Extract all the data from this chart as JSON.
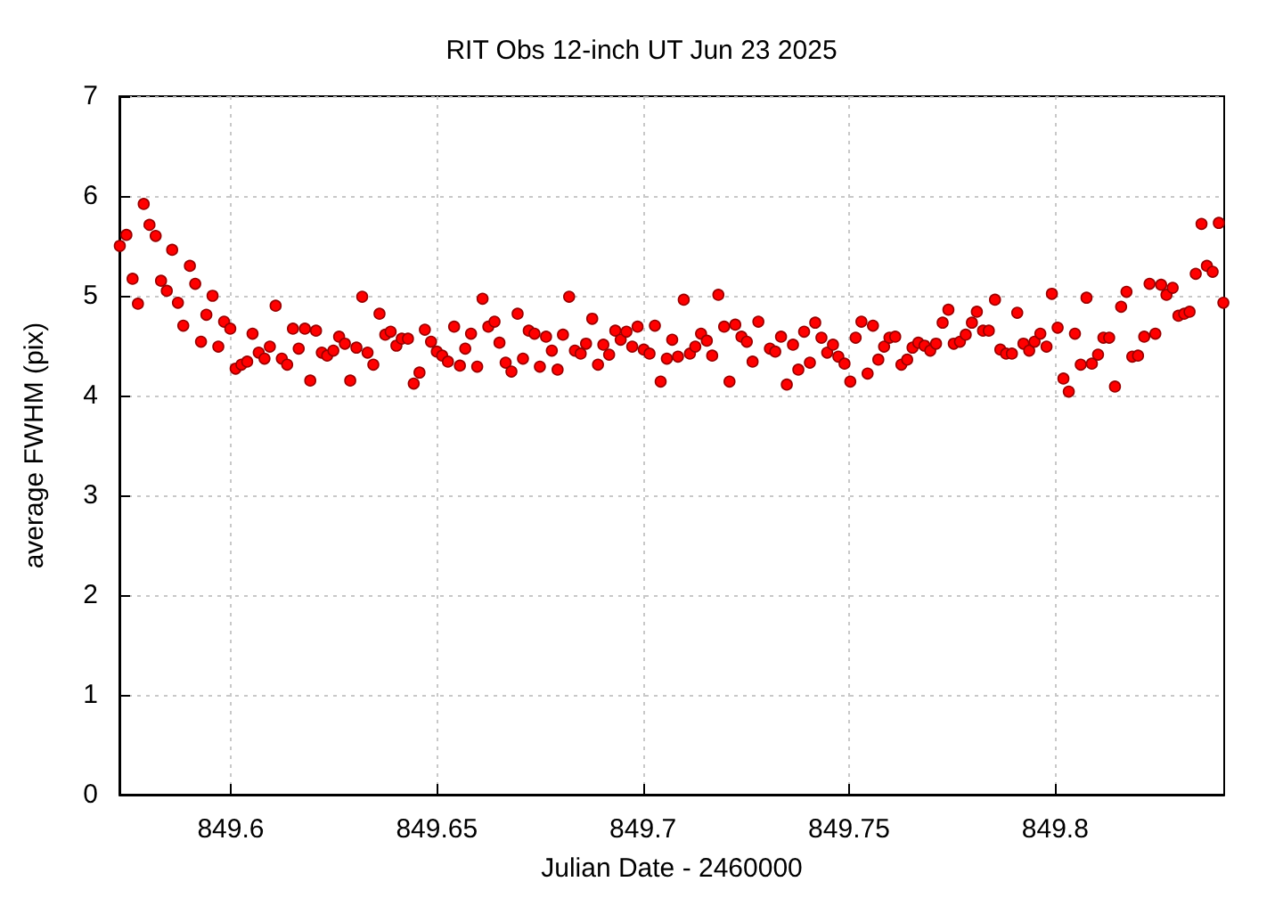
{
  "chart_data": {
    "type": "scatter",
    "title": "RIT Obs 12-inch UT Jun 23 2025",
    "xlabel": "Julian Date - 2460000",
    "ylabel": "average FWHM (pix)",
    "x": [
      849.5731,
      849.5747,
      849.5762,
      849.5775,
      849.5789,
      849.5803,
      849.5818,
      849.5831,
      849.5845,
      849.5858,
      849.5872,
      849.5885,
      849.5901,
      849.5914,
      849.5928,
      849.5941,
      849.5956,
      849.597,
      849.5984,
      849.5999,
      849.6012,
      849.6026,
      849.604,
      849.6053,
      849.6068,
      849.6082,
      849.6095,
      849.6109,
      849.6124,
      849.6137,
      849.6151,
      849.6165,
      849.618,
      849.6193,
      849.6207,
      849.6221,
      849.6234,
      849.6249,
      849.6263,
      849.6277,
      849.629,
      849.6305,
      849.6319,
      849.6332,
      849.6346,
      849.6361,
      849.6375,
      849.6388,
      849.6402,
      849.6415,
      849.643,
      849.6444,
      849.6458,
      849.6471,
      849.6486,
      849.65,
      849.6513,
      849.6527,
      849.6542,
      849.6556,
      849.6569,
      849.6583,
      849.6598,
      849.6611,
      849.6625,
      849.664,
      849.6652,
      849.6667,
      849.6681,
      849.6696,
      849.6709,
      849.6723,
      849.6737,
      849.675,
      849.6765,
      849.6779,
      849.6793,
      849.6806,
      849.6821,
      849.6835,
      849.6849,
      849.6862,
      849.6877,
      849.6891,
      849.6904,
      849.6918,
      849.6933,
      849.6946,
      849.696,
      849.6974,
      849.6987,
      849.7002,
      849.7016,
      849.7029,
      849.7043,
      849.7058,
      849.7071,
      849.7085,
      849.7099,
      849.7114,
      849.7127,
      849.7141,
      849.7155,
      849.7168,
      849.7183,
      849.7197,
      849.721,
      849.7224,
      849.7239,
      849.7252,
      849.7266,
      849.728,
      849.7308,
      849.7321,
      849.7335,
      849.7349,
      849.7364,
      849.7377,
      849.7391,
      849.7405,
      849.7418,
      849.7433,
      849.7447,
      849.7461,
      849.7474,
      849.7489,
      849.7503,
      849.7516,
      849.753,
      849.7545,
      849.7558,
      849.7571,
      849.7585,
      849.7598,
      849.7612,
      849.7627,
      849.7641,
      849.7654,
      849.7668,
      849.7683,
      849.7697,
      849.7711,
      849.7727,
      849.7741,
      849.7754,
      849.7769,
      849.7783,
      849.7798,
      849.781,
      849.7825,
      849.7839,
      849.7854,
      849.7867,
      849.7881,
      849.7895,
      849.7908,
      849.7923,
      849.7937,
      849.795,
      849.7964,
      849.7979,
      849.7992,
      849.8006,
      849.802,
      849.8033,
      849.8048,
      849.8062,
      849.8076,
      849.8089,
      849.8104,
      849.8117,
      849.8131,
      849.8145,
      849.816,
      849.8173,
      849.8187,
      849.8201,
      849.8216,
      849.8229,
      849.8243,
      849.8257,
      849.827,
      849.8285,
      849.8299,
      849.8313,
      849.8326,
      849.8341,
      849.8355,
      849.8368,
      849.8382,
      849.8397,
      849.8408
    ],
    "series": [
      {
        "color": "#ff0000",
        "values": [
          5.5,
          5.61,
          5.17,
          4.92,
          5.92,
          5.71,
          5.6,
          5.15,
          5.05,
          5.46,
          4.93,
          4.7,
          5.3,
          5.12,
          4.54,
          4.81,
          5.0,
          4.49,
          4.74,
          4.67,
          4.27,
          4.31,
          4.34,
          4.62,
          4.43,
          4.37,
          4.49,
          4.9,
          4.37,
          4.31,
          4.67,
          4.47,
          4.67,
          4.15,
          4.65,
          4.43,
          4.4,
          4.45,
          4.59,
          4.52,
          4.15,
          4.48,
          4.99,
          4.43,
          4.31,
          4.82,
          4.61,
          4.64,
          4.5,
          4.57,
          4.57,
          4.12,
          4.23,
          4.66,
          4.54,
          4.44,
          4.4,
          4.34,
          4.69,
          4.3,
          4.47,
          4.62,
          4.29,
          4.97,
          4.69,
          4.74,
          4.53,
          4.33,
          4.24,
          4.82,
          4.37,
          4.65,
          4.62,
          4.29,
          4.59,
          4.45,
          4.26,
          4.61,
          4.99,
          4.45,
          4.42,
          4.52,
          4.77,
          4.31,
          4.51,
          4.41,
          4.65,
          4.56,
          4.64,
          4.49,
          4.69,
          4.46,
          4.42,
          4.7,
          4.14,
          4.37,
          4.56,
          4.39,
          4.96,
          4.42,
          4.49,
          4.62,
          4.55,
          4.4,
          5.01,
          4.69,
          4.14,
          4.71,
          4.59,
          4.54,
          4.34,
          4.74,
          4.47,
          4.44,
          4.59,
          4.11,
          4.51,
          4.26,
          4.64,
          4.33,
          4.73,
          4.58,
          4.43,
          4.51,
          4.39,
          4.32,
          4.14,
          4.58,
          4.74,
          4.22,
          4.7,
          4.36,
          4.49,
          4.58,
          4.59,
          4.31,
          4.36,
          4.48,
          4.53,
          4.5,
          4.45,
          4.52,
          4.73,
          4.86,
          4.52,
          4.54,
          4.61,
          4.73,
          4.84,
          4.65,
          4.65,
          4.96,
          4.46,
          4.42,
          4.42,
          4.83,
          4.52,
          4.45,
          4.54,
          4.62,
          4.49,
          5.02,
          4.68,
          4.17,
          4.04,
          4.62,
          4.31,
          4.98,
          4.32,
          4.41,
          4.58,
          4.58,
          4.09,
          4.89,
          5.04,
          4.39,
          4.4,
          4.59,
          5.12,
          4.62,
          5.11,
          5.01,
          5.08,
          4.8,
          4.82,
          4.84,
          5.22,
          5.72,
          5.3,
          5.24,
          5.73,
          4.93
        ]
      }
    ],
    "xlim": [
      849.573,
      849.841
    ],
    "xticks": [
      849.6,
      849.65,
      849.7,
      849.75,
      849.8
    ],
    "ylim": [
      0,
      7
    ],
    "yticks": [
      0,
      1,
      2,
      3,
      4,
      5,
      6,
      7
    ],
    "grid": true,
    "marker": "circle"
  }
}
